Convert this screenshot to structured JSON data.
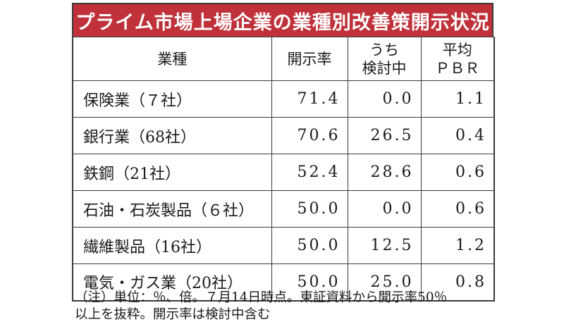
{
  "title": "プライム市場上場企業の業種別改善策開示状況",
  "headers": {
    "category": "業種",
    "disclosure_rate": "開示率",
    "under_review": [
      "うち",
      "検討中"
    ],
    "avg_pbr": [
      "平均",
      "ＰＢＲ"
    ]
  },
  "rows": [
    {
      "category": "保険業（７社）",
      "disclosure_rate": "71.4",
      "under_review": "0.0",
      "avg_pbr": "1.1"
    },
    {
      "category": "銀行業（68社）",
      "disclosure_rate": "70.6",
      "under_review": "26.5",
      "avg_pbr": "0.4"
    },
    {
      "category": "鉄鋼（21社）",
      "disclosure_rate": "52.4",
      "under_review": "28.6",
      "avg_pbr": "0.6"
    },
    {
      "category": "石油・石炭製品（６社）",
      "disclosure_rate": "50.0",
      "under_review": "0.0",
      "avg_pbr": "0.6"
    },
    {
      "category": "繊維製品（16社）",
      "disclosure_rate": "50.0",
      "under_review": "12.5",
      "avg_pbr": "1.2"
    },
    {
      "category": "電気・ガス業（20社）",
      "disclosure_rate": "50.0",
      "under_review": "25.0",
      "avg_pbr": "0.8"
    }
  ],
  "note": [
    "（注）単位：％、倍。７月14日時点。東証資料から開示率50％",
    "以上を抜粋。開示率は検討中含む"
  ],
  "colors": {
    "title_bg": "#c0313a",
    "title_text": "#ffffff",
    "border": "#3a3a3a"
  }
}
